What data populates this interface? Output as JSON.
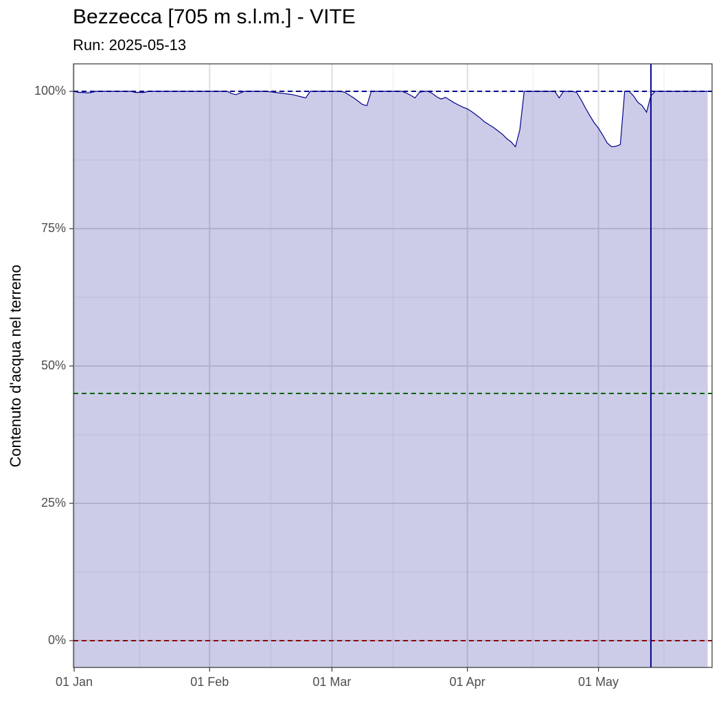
{
  "chart_data": {
    "type": "area",
    "title": "Bezzecca [705 m s.l.m.] - VITE",
    "subtitle": "Run: 2025-05-13",
    "y_label": "Contenuto d'acqua nel terreno",
    "color": "#00008b",
    "x": [
      "01 Jan",
      "02 Jan",
      "03 Jan",
      "04 Jan",
      "05 Jan",
      "06 Jan",
      "07 Jan",
      "08 Jan",
      "09 Jan",
      "10 Jan",
      "11 Jan",
      "12 Jan",
      "13 Jan",
      "14 Jan",
      "15 Jan",
      "16 Jan",
      "17 Jan",
      "18 Jan",
      "19 Jan",
      "20 Jan",
      "21 Jan",
      "22 Jan",
      "23 Jan",
      "24 Jan",
      "25 Jan",
      "26 Jan",
      "27 Jan",
      "28 Jan",
      "29 Jan",
      "30 Jan",
      "31 Jan",
      "01 Feb",
      "02 Feb",
      "03 Feb",
      "04 Feb",
      "05 Feb",
      "06 Feb",
      "07 Feb",
      "08 Feb",
      "09 Feb",
      "10 Feb",
      "11 Feb",
      "12 Feb",
      "13 Feb",
      "14 Feb",
      "15 Feb",
      "16 Feb",
      "17 Feb",
      "18 Feb",
      "19 Feb",
      "20 Feb",
      "21 Feb",
      "22 Feb",
      "23 Feb",
      "24 Feb",
      "25 Feb",
      "26 Feb",
      "27 Feb",
      "28 Feb",
      "01 Mar",
      "02 Mar",
      "03 Mar",
      "04 Mar",
      "05 Mar",
      "06 Mar",
      "07 Mar",
      "08 Mar",
      "09 Mar",
      "10 Mar",
      "11 Mar",
      "12 Mar",
      "13 Mar",
      "14 Mar",
      "15 Mar",
      "16 Mar",
      "17 Mar",
      "18 Mar",
      "19 Mar",
      "20 Mar",
      "21 Mar",
      "22 Mar",
      "23 Mar",
      "24 Mar",
      "25 Mar",
      "26 Mar",
      "27 Mar",
      "28 Mar",
      "29 Mar",
      "30 Mar",
      "31 Mar",
      "01 Apr",
      "02 Apr",
      "03 Apr",
      "04 Apr",
      "05 Apr",
      "06 Apr",
      "07 Apr",
      "08 Apr",
      "09 Apr",
      "10 Apr",
      "11 Apr",
      "12 Apr",
      "13 Apr",
      "14 Apr",
      "15 Apr",
      "16 Apr",
      "17 Apr",
      "18 Apr",
      "19 Apr",
      "20 Apr",
      "21 Apr",
      "22 Apr",
      "23 Apr",
      "24 Apr",
      "25 Apr",
      "26 Apr",
      "27 Apr",
      "28 Apr",
      "29 Apr",
      "30 Apr",
      "01 May",
      "02 May",
      "03 May",
      "04 May",
      "05 May",
      "06 May",
      "07 May",
      "08 May",
      "09 May",
      "10 May",
      "11 May",
      "12 May",
      "13 May",
      "14 May",
      "15 May",
      "16 May",
      "17 May",
      "18 May",
      "19 May",
      "20 May",
      "21 May",
      "22 May",
      "23 May",
      "24 May",
      "25 May",
      "26 May"
    ],
    "values": [
      100,
      99.8,
      99.8,
      99.7,
      99.8,
      100,
      100,
      100,
      100,
      100,
      100,
      100,
      100,
      100,
      99.8,
      99.8,
      99.8,
      100,
      100,
      100,
      100,
      100,
      100,
      100,
      100,
      100,
      100,
      100,
      100,
      100,
      100,
      100,
      100,
      100,
      100,
      100,
      99.6,
      99.4,
      99.7,
      100,
      100,
      100,
      100,
      100,
      100,
      99.9,
      99.8,
      99.7,
      99.6,
      99.5,
      99.4,
      99.2,
      99,
      98.8,
      100,
      100,
      100,
      100,
      100,
      100,
      100,
      100,
      99.8,
      99.3,
      98.8,
      98.2,
      97.6,
      97.4,
      100,
      100,
      100,
      100,
      100,
      100,
      100,
      100,
      99.7,
      99.3,
      98.8,
      99.8,
      100,
      100,
      99.6,
      99,
      98.6,
      98.9,
      98.4,
      97.9,
      97.5,
      97.1,
      96.8,
      96.3,
      95.7,
      95.1,
      94.4,
      93.9,
      93.4,
      92.8,
      92.2,
      91.4,
      90.8,
      89.9,
      93,
      100,
      100,
      100,
      100,
      100,
      100,
      100,
      100,
      98.8,
      100,
      100,
      100,
      99.8,
      98.5,
      97,
      95.6,
      94.3,
      93.3,
      92,
      90.6,
      89.9,
      90,
      90.3,
      100,
      100,
      99.2,
      98,
      97.4,
      96.2,
      99.2,
      100,
      100,
      100,
      100,
      100,
      100,
      100,
      100,
      100,
      100,
      100,
      100,
      100
    ],
    "xlim": [
      "01 Jan",
      "27 May"
    ],
    "xticks": [
      "01 Jan",
      "01 Feb",
      "01 Mar",
      "01 Apr",
      "01 May"
    ],
    "xminor": [
      "16 Jan",
      "15 Feb",
      "15 Mar",
      "16 Apr",
      "16 May"
    ],
    "ylim": [
      -4.875,
      105
    ],
    "yticks": [
      {
        "value": 0,
        "label": "0%"
      },
      {
        "value": 25,
        "label": "25%"
      },
      {
        "value": 50,
        "label": "50%"
      },
      {
        "value": 75,
        "label": "75%"
      },
      {
        "value": 100,
        "label": "100%"
      }
    ],
    "yminor": [
      12.5,
      37.5,
      62.5,
      87.5
    ],
    "grid": true,
    "hlines": [
      {
        "value": 100,
        "color": "#00008b"
      },
      {
        "value": 45,
        "color": "#006400"
      },
      {
        "value": 0,
        "color": "#8b0000"
      }
    ],
    "vline": "13 May"
  }
}
